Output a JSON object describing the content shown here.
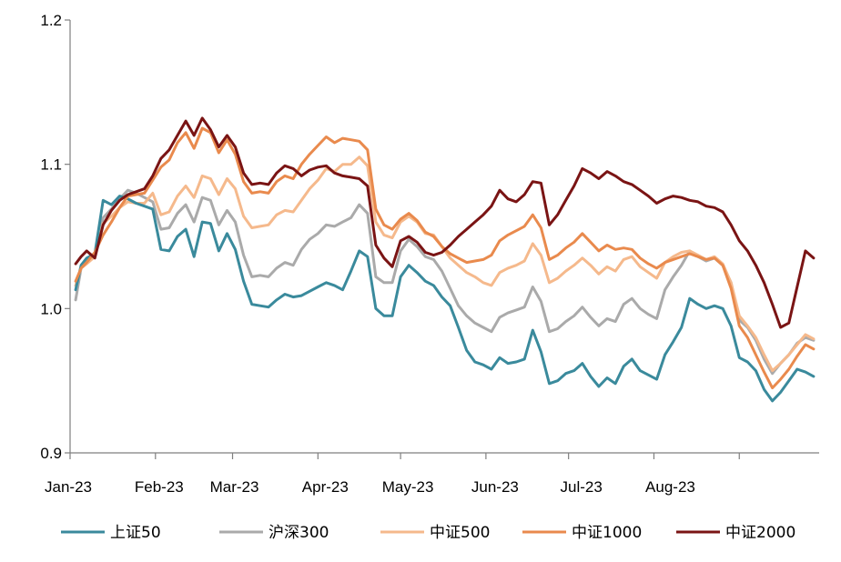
{
  "chart_data": {
    "type": "line",
    "title": "",
    "xlabel": "",
    "ylabel": "",
    "ylim": [
      0.9,
      1.2
    ],
    "y_ticks": [
      "0.9",
      "1.0",
      "1.1",
      "1.2"
    ],
    "x_tick_labels": [
      "Jan-23",
      "Feb-23",
      "Mar-23",
      "Apr-23",
      "May-23",
      "Jun-23",
      "Jul-23",
      "Aug-23"
    ],
    "grid": false,
    "legend_position": "bottom",
    "x_dates": [
      "2023-01-03",
      "2023-01-05",
      "2023-01-07",
      "2023-01-10",
      "2023-01-13",
      "2023-01-16",
      "2023-01-19",
      "2023-01-22",
      "2023-01-25",
      "2023-01-28",
      "2023-01-31",
      "2023-02-03",
      "2023-02-06",
      "2023-02-09",
      "2023-02-12",
      "2023-02-15",
      "2023-02-18",
      "2023-02-21",
      "2023-02-24",
      "2023-02-27",
      "2023-03-02",
      "2023-03-05",
      "2023-03-08",
      "2023-03-11",
      "2023-03-14",
      "2023-03-17",
      "2023-03-20",
      "2023-03-23",
      "2023-03-26",
      "2023-03-29",
      "2023-04-01",
      "2023-04-04",
      "2023-04-07",
      "2023-04-10",
      "2023-04-13",
      "2023-04-16",
      "2023-04-19",
      "2023-04-22",
      "2023-04-25",
      "2023-04-28",
      "2023-05-01",
      "2023-05-04",
      "2023-05-07",
      "2023-05-10",
      "2023-05-13",
      "2023-05-16",
      "2023-05-19",
      "2023-05-22",
      "2023-05-25",
      "2023-05-28",
      "2023-05-31",
      "2023-06-03",
      "2023-06-06",
      "2023-06-09",
      "2023-06-12",
      "2023-06-15",
      "2023-06-18",
      "2023-06-21",
      "2023-06-24",
      "2023-06-27",
      "2023-06-30",
      "2023-07-03",
      "2023-07-06",
      "2023-07-09",
      "2023-07-12",
      "2023-07-15",
      "2023-07-18",
      "2023-07-21",
      "2023-07-24",
      "2023-07-27",
      "2023-07-30",
      "2023-08-02",
      "2023-08-05",
      "2023-08-08",
      "2023-08-11",
      "2023-08-14",
      "2023-08-17",
      "2023-08-20",
      "2023-08-23",
      "2023-08-26",
      "2023-08-29",
      "2023-09-01",
      "2023-09-04",
      "2023-09-07",
      "2023-09-10",
      "2023-09-13",
      "2023-09-16",
      "2023-09-19",
      "2023-09-22",
      "2023-09-25",
      "2023-09-28"
    ],
    "series": [
      {
        "name": "上证50",
        "color": "#3a8a9c",
        "width": 3,
        "values": [
          1.013,
          1.03,
          1.035,
          1.038,
          1.075,
          1.072,
          1.078,
          1.076,
          1.073,
          1.071,
          1.069,
          1.041,
          1.04,
          1.05,
          1.055,
          1.036,
          1.06,
          1.059,
          1.04,
          1.052,
          1.041,
          1.019,
          1.003,
          1.002,
          1.001,
          1.006,
          1.01,
          1.008,
          1.009,
          1.012,
          1.015,
          1.018,
          1.016,
          1.013,
          1.026,
          1.04,
          1.036,
          1.0,
          0.995,
          0.995,
          1.022,
          1.03,
          1.025,
          1.019,
          1.016,
          1.008,
          1.002,
          0.987,
          0.971,
          0.963,
          0.961,
          0.958,
          0.966,
          0.962,
          0.963,
          0.965,
          0.985,
          0.97,
          0.948,
          0.95,
          0.955,
          0.957,
          0.962,
          0.953,
          0.946,
          0.952,
          0.948,
          0.96,
          0.965,
          0.957,
          0.954,
          0.951,
          0.968,
          0.977,
          0.987,
          1.007,
          1.003,
          1.0,
          1.002,
          1.0,
          0.988,
          0.966,
          0.963,
          0.957,
          0.944,
          0.936,
          0.942,
          0.95,
          0.958,
          0.956,
          0.953
        ]
      },
      {
        "name": "沪深300",
        "color": "#aaaaaa",
        "width": 3,
        "values": [
          1.006,
          1.028,
          1.034,
          1.037,
          1.063,
          1.069,
          1.076,
          1.082,
          1.08,
          1.077,
          1.074,
          1.055,
          1.056,
          1.066,
          1.072,
          1.06,
          1.077,
          1.075,
          1.058,
          1.068,
          1.06,
          1.037,
          1.022,
          1.023,
          1.022,
          1.028,
          1.032,
          1.03,
          1.041,
          1.048,
          1.052,
          1.058,
          1.057,
          1.06,
          1.063,
          1.072,
          1.066,
          1.022,
          1.018,
          1.018,
          1.04,
          1.048,
          1.043,
          1.036,
          1.034,
          1.026,
          1.014,
          1.002,
          0.995,
          0.99,
          0.987,
          0.984,
          0.994,
          0.997,
          0.999,
          1.001,
          1.015,
          1.005,
          0.984,
          0.986,
          0.991,
          0.995,
          1.001,
          0.994,
          0.988,
          0.993,
          0.991,
          1.003,
          1.007,
          1.0,
          0.996,
          0.993,
          1.013,
          1.022,
          1.03,
          1.04,
          1.036,
          1.033,
          1.035,
          1.03,
          1.018,
          0.992,
          0.987,
          0.978,
          0.965,
          0.955,
          0.962,
          0.968,
          0.976,
          0.98,
          0.978
        ]
      },
      {
        "name": "中证500",
        "color": "#f5b98c",
        "width": 3,
        "values": [
          1.016,
          1.028,
          1.031,
          1.036,
          1.059,
          1.064,
          1.07,
          1.074,
          1.073,
          1.073,
          1.08,
          1.065,
          1.067,
          1.078,
          1.085,
          1.077,
          1.092,
          1.09,
          1.079,
          1.09,
          1.083,
          1.064,
          1.056,
          1.057,
          1.058,
          1.065,
          1.068,
          1.067,
          1.075,
          1.083,
          1.089,
          1.097,
          1.095,
          1.1,
          1.1,
          1.105,
          1.099,
          1.06,
          1.051,
          1.049,
          1.06,
          1.064,
          1.06,
          1.052,
          1.051,
          1.043,
          1.035,
          1.03,
          1.025,
          1.022,
          1.018,
          1.016,
          1.025,
          1.028,
          1.03,
          1.033,
          1.045,
          1.037,
          1.018,
          1.021,
          1.026,
          1.03,
          1.035,
          1.03,
          1.024,
          1.029,
          1.026,
          1.034,
          1.036,
          1.029,
          1.025,
          1.021,
          1.032,
          1.036,
          1.039,
          1.04,
          1.037,
          1.034,
          1.036,
          1.031,
          1.018,
          0.995,
          0.988,
          0.98,
          0.968,
          0.957,
          0.962,
          0.968,
          0.975,
          0.982,
          0.979
        ]
      },
      {
        "name": "中证1000",
        "color": "#e98a4d",
        "width": 3,
        "values": [
          1.019,
          1.028,
          1.032,
          1.039,
          1.051,
          1.06,
          1.07,
          1.078,
          1.079,
          1.08,
          1.089,
          1.098,
          1.103,
          1.115,
          1.122,
          1.111,
          1.125,
          1.122,
          1.108,
          1.117,
          1.107,
          1.088,
          1.08,
          1.081,
          1.08,
          1.088,
          1.092,
          1.09,
          1.1,
          1.107,
          1.113,
          1.119,
          1.115,
          1.118,
          1.117,
          1.116,
          1.11,
          1.069,
          1.058,
          1.055,
          1.062,
          1.066,
          1.061,
          1.053,
          1.05,
          1.043,
          1.038,
          1.035,
          1.032,
          1.033,
          1.034,
          1.037,
          1.047,
          1.051,
          1.054,
          1.057,
          1.065,
          1.056,
          1.034,
          1.037,
          1.042,
          1.046,
          1.052,
          1.046,
          1.04,
          1.044,
          1.041,
          1.042,
          1.041,
          1.035,
          1.031,
          1.028,
          1.032,
          1.034,
          1.036,
          1.038,
          1.036,
          1.034,
          1.035,
          1.03,
          1.014,
          0.988,
          0.98,
          0.968,
          0.956,
          0.945,
          0.951,
          0.958,
          0.967,
          0.975,
          0.972
        ]
      },
      {
        "name": "中证2000",
        "color": "#7a1414",
        "width": 3,
        "values": [
          1.031,
          1.036,
          1.04,
          1.035,
          1.058,
          1.068,
          1.075,
          1.079,
          1.081,
          1.083,
          1.092,
          1.104,
          1.11,
          1.12,
          1.13,
          1.12,
          1.132,
          1.124,
          1.112,
          1.12,
          1.112,
          1.094,
          1.086,
          1.087,
          1.086,
          1.094,
          1.099,
          1.097,
          1.092,
          1.096,
          1.098,
          1.099,
          1.094,
          1.092,
          1.091,
          1.09,
          1.085,
          1.044,
          1.035,
          1.029,
          1.047,
          1.05,
          1.046,
          1.039,
          1.037,
          1.039,
          1.044,
          1.05,
          1.055,
          1.06,
          1.065,
          1.071,
          1.082,
          1.076,
          1.074,
          1.079,
          1.088,
          1.087,
          1.058,
          1.065,
          1.075,
          1.085,
          1.097,
          1.094,
          1.09,
          1.095,
          1.092,
          1.088,
          1.086,
          1.082,
          1.078,
          1.073,
          1.076,
          1.078,
          1.077,
          1.075,
          1.074,
          1.071,
          1.07,
          1.067,
          1.058,
          1.047,
          1.04,
          1.03,
          1.018,
          1.003,
          0.987,
          0.99,
          1.015,
          1.04,
          1.035
        ]
      }
    ]
  }
}
